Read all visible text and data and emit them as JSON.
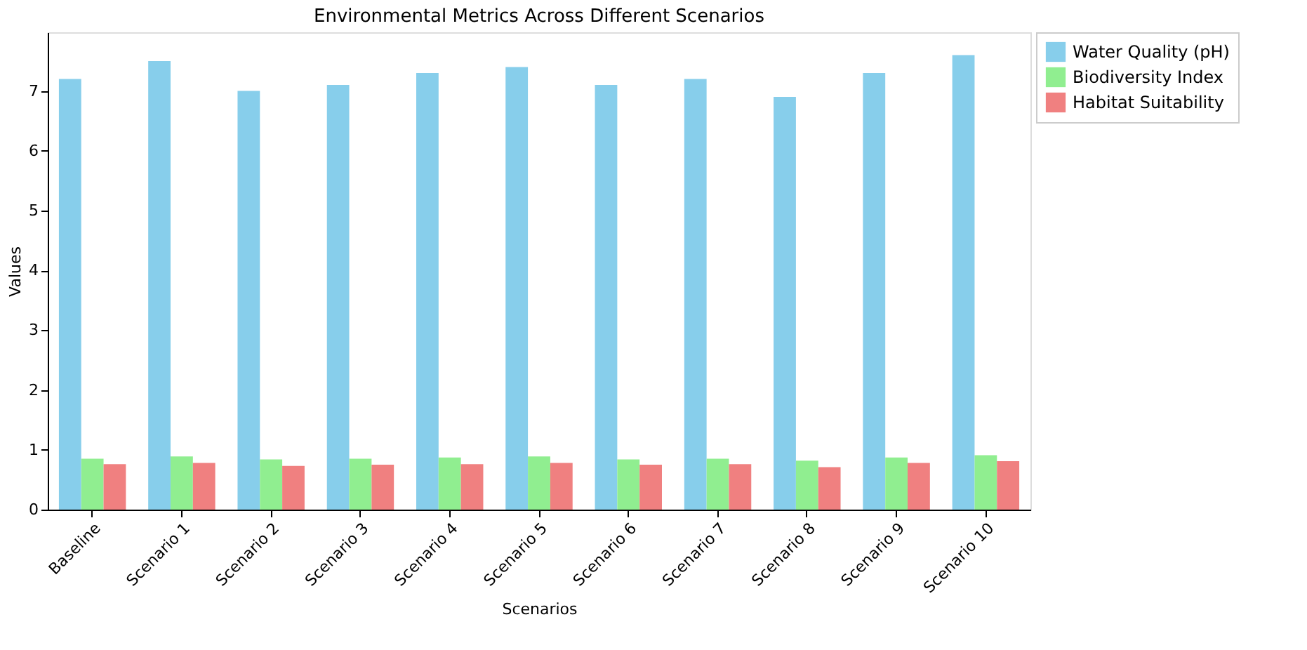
{
  "chart_data": {
    "type": "bar",
    "title": "Environmental Metrics Across Different Scenarios",
    "xlabel": "Scenarios",
    "ylabel": "Values",
    "categories": [
      "Baseline",
      "Scenario 1",
      "Scenario 2",
      "Scenario 3",
      "Scenario 4",
      "Scenario 5",
      "Scenario 6",
      "Scenario 7",
      "Scenario 8",
      "Scenario 9",
      "Scenario 10"
    ],
    "series": [
      {
        "name": "Water Quality (pH)",
        "color": "#87ceeb",
        "values": [
          7.2,
          7.5,
          7.0,
          7.1,
          7.3,
          7.4,
          7.1,
          7.2,
          6.9,
          7.3,
          7.6
        ]
      },
      {
        "name": "Biodiversity Index",
        "color": "#90ee90",
        "values": [
          0.85,
          0.89,
          0.84,
          0.85,
          0.87,
          0.89,
          0.84,
          0.85,
          0.82,
          0.87,
          0.91
        ]
      },
      {
        "name": "Habitat Suitability",
        "color": "#f08080",
        "values": [
          0.76,
          0.78,
          0.73,
          0.75,
          0.76,
          0.78,
          0.75,
          0.76,
          0.71,
          0.78,
          0.81
        ]
      }
    ],
    "ylim": [
      0,
      7.98
    ],
    "yticks": [
      0,
      1,
      2,
      3,
      4,
      5,
      6,
      7
    ],
    "grid": false,
    "legend": "top right"
  }
}
